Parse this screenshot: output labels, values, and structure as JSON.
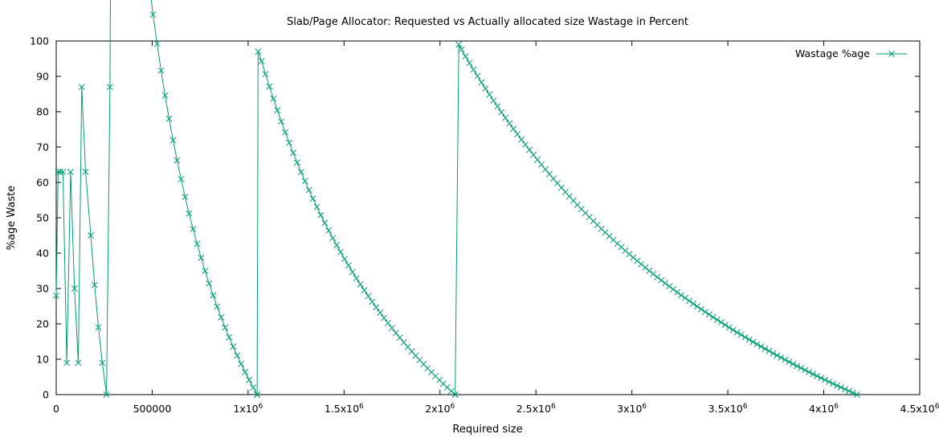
{
  "chart_data": {
    "type": "line",
    "title": "Slab/Page Allocator: Requested vs Actually allocated size Wastage in Percent",
    "xlabel": "Required size",
    "ylabel": "%age Waste",
    "xlim": [
      0,
      4500000
    ],
    "ylim": [
      0,
      100
    ],
    "grid": false,
    "legend_position": "top-right",
    "x_ticks": [
      {
        "value": 0,
        "label": "0",
        "exp": ""
      },
      {
        "value": 500000,
        "label": "500000",
        "exp": ""
      },
      {
        "value": 1000000,
        "label": "1x10",
        "exp": "6"
      },
      {
        "value": 1500000,
        "label": "1.5x10",
        "exp": "6"
      },
      {
        "value": 2000000,
        "label": "2x10",
        "exp": "6"
      },
      {
        "value": 2500000,
        "label": "2.5x10",
        "exp": "6"
      },
      {
        "value": 3000000,
        "label": "3x10",
        "exp": "6"
      },
      {
        "value": 3500000,
        "label": "3.5x10",
        "exp": "6"
      },
      {
        "value": 4000000,
        "label": "4x10",
        "exp": "6"
      },
      {
        "value": 4500000,
        "label": "4.5x10",
        "exp": "6"
      }
    ],
    "y_ticks": [
      0,
      10,
      20,
      30,
      40,
      50,
      60,
      70,
      80,
      90,
      100
    ],
    "series": [
      {
        "name": "Wastage %age",
        "color": "#009e73",
        "marker": "x",
        "segments": [
          {
            "type": "points",
            "points": [
              [
                0,
                28
              ],
              [
                10000,
                63
              ],
              [
                20000,
                63
              ],
              [
                35000,
                63
              ],
              [
                55000,
                9
              ],
              [
                75000,
                63
              ],
              [
                95000,
                30
              ],
              [
                115000,
                9
              ],
              [
                133000,
                87
              ],
              [
                153000,
                63
              ],
              [
                180000,
                45
              ],
              [
                200000,
                31
              ],
              [
                220000,
                19
              ],
              [
                240000,
                9
              ],
              [
                262000,
                0
              ],
              [
                280000,
                87
              ]
            ]
          },
          {
            "type": "decay",
            "x_start": 296000,
            "x_end": 1047000,
            "points": 37
          },
          {
            "type": "points",
            "points": [
              [
                1047000,
                0
              ],
              [
                1052000,
                97
              ]
            ]
          },
          {
            "type": "decay",
            "x_start": 1070000,
            "x_end": 2079000,
            "points": 50
          },
          {
            "type": "points",
            "points": [
              [
                2079000,
                0
              ],
              [
                2098000,
                99
              ]
            ]
          },
          {
            "type": "decay",
            "x_start": 2112000,
            "x_end": 4173000,
            "points": 100
          }
        ]
      }
    ]
  }
}
